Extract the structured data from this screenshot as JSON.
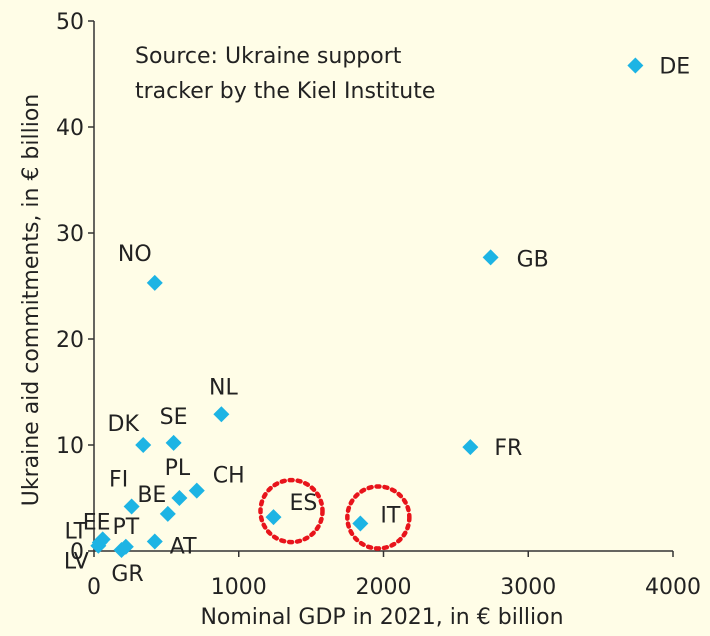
{
  "chart_data": {
    "type": "scatter",
    "title": "",
    "xlabel": "Nominal GDP in 2021, in € billion",
    "ylabel": "Ukraine aid commitments, in € billion",
    "xlim": [
      0,
      4000
    ],
    "ylim": [
      0,
      50
    ],
    "xticks": [
      "0",
      "1000",
      "2000",
      "3000",
      "4000"
    ],
    "yticks": [
      "0",
      "10",
      "20",
      "30",
      "40",
      "50"
    ],
    "grid": false,
    "annotation": [
      "Source: Ukraine support",
      "tracker by the Kiel Institute"
    ],
    "marker_color": "#1DB4E4",
    "highlight_color": "#E8141B",
    "highlighted": [
      "ES",
      "IT"
    ],
    "points": [
      {
        "label": "DE",
        "x": 3740,
        "y": 45.8
      },
      {
        "label": "GB",
        "x": 2740,
        "y": 27.7
      },
      {
        "label": "NO",
        "x": 420,
        "y": 25.3
      },
      {
        "label": "NL",
        "x": 880,
        "y": 12.9
      },
      {
        "label": "FR",
        "x": 2600,
        "y": 9.8
      },
      {
        "label": "DK",
        "x": 340,
        "y": 10.0
      },
      {
        "label": "SE",
        "x": 550,
        "y": 10.2
      },
      {
        "label": "PL",
        "x": 590,
        "y": 5.0
      },
      {
        "label": "CH",
        "x": 710,
        "y": 5.7
      },
      {
        "label": "FI",
        "x": 260,
        "y": 4.2
      },
      {
        "label": "BE",
        "x": 510,
        "y": 3.5
      },
      {
        "label": "ES",
        "x": 1240,
        "y": 3.2
      },
      {
        "label": "IT",
        "x": 1840,
        "y": 2.6
      },
      {
        "label": "EE",
        "x": 60,
        "y": 1.1
      },
      {
        "label": "LT",
        "x": 40,
        "y": 0.8
      },
      {
        "label": "LV",
        "x": 30,
        "y": 0.5
      },
      {
        "label": "PT",
        "x": 220,
        "y": 0.4
      },
      {
        "label": "AT",
        "x": 420,
        "y": 0.9
      },
      {
        "label": "GR",
        "x": 190,
        "y": 0.1
      }
    ]
  }
}
